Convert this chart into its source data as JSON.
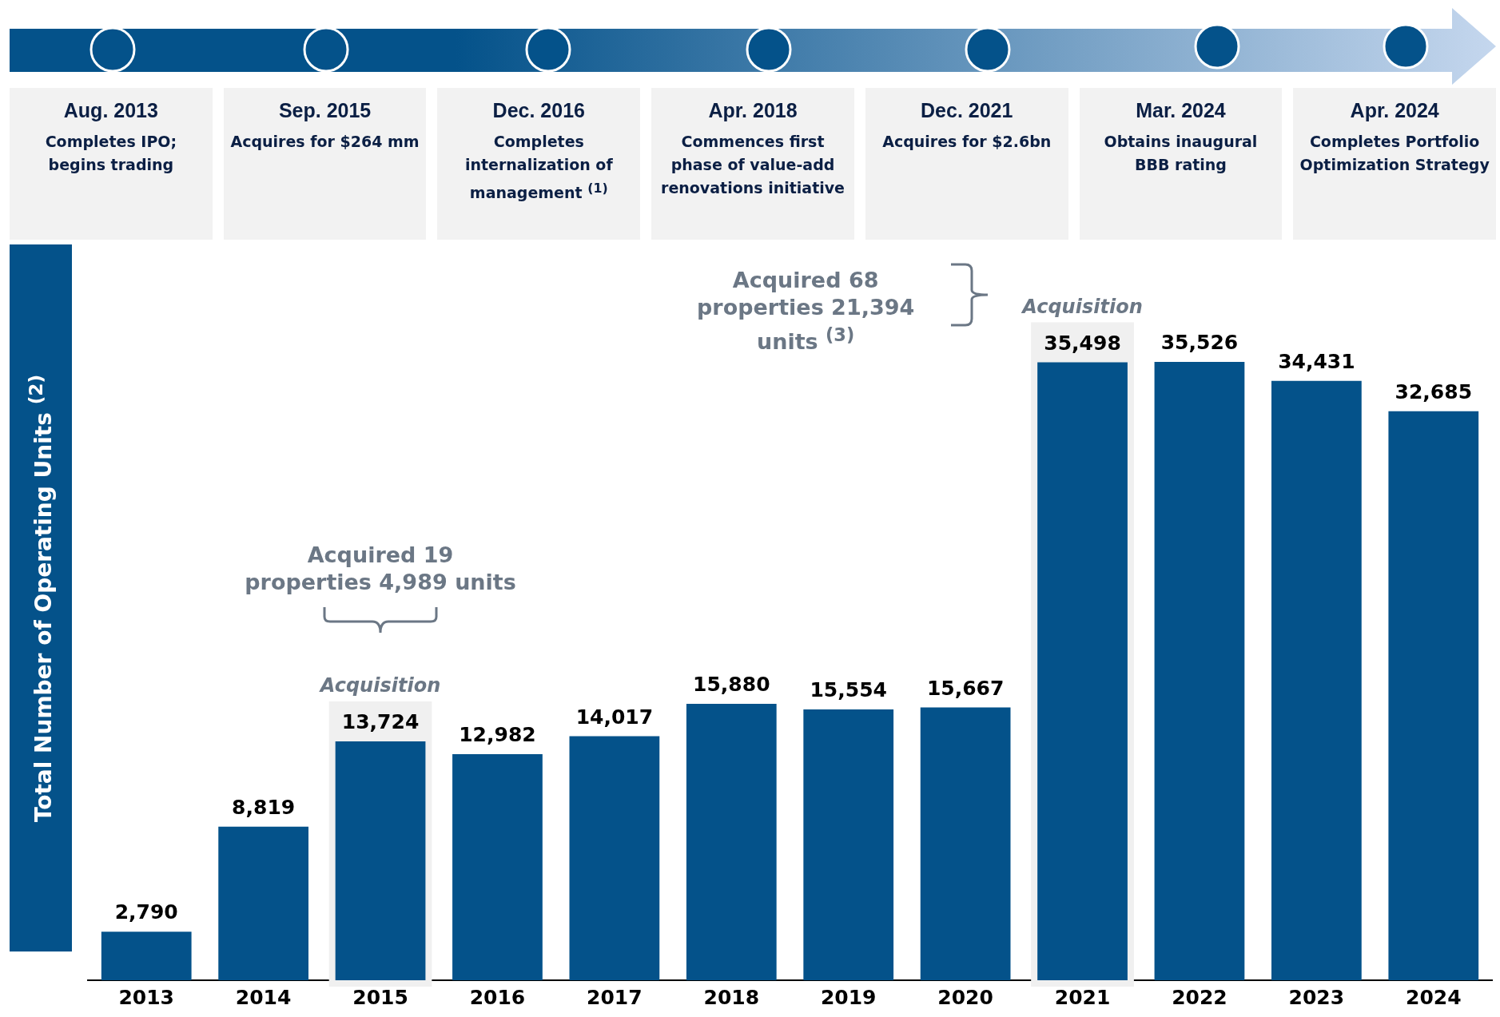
{
  "chart_data": {
    "type": "bar",
    "ylabel": "Total Number of Operating Units $^{(2)}$",
    "categories": [
      "2013",
      "2014",
      "2015",
      "2016",
      "2017",
      "2018",
      "2019",
      "2020",
      "2021",
      "2022",
      "2023",
      "2024"
    ],
    "values": [
      2790,
      8819,
      13724,
      12982,
      14017,
      15880,
      15554,
      15667,
      35498,
      35526,
      34431,
      32685
    ],
    "color": "#04528a",
    "value_labels": [
      "2,790",
      "8,819",
      "13,724",
      "12,982",
      "14,017",
      "15,880",
      "15,554",
      "15,667",
      "35,498",
      "35,526",
      "34,431",
      "32,685"
    ],
    "legend": false,
    "grid": false,
    "tick_labels": "x",
    "bands": [
      {
        "axis": "x",
        "from": "2015",
        "to": "2015",
        "label": "Acquisition",
        "color": "#f0f0f0"
      },
      {
        "axis": "x",
        "from": "2021",
        "to": "2021",
        "label": "Acquisition",
        "color": "#f0f0f0"
      }
    ],
    "annotations": [
      "Aug. 2013\nCompletes IPO; begins trading",
      "Sep. 2015\nAcquires for $264 mm",
      "Dec. 2016\nCompletes internalization of management $^{(1)}$",
      "Apr. 2018\nCommences first phase of value-add renovations initiative",
      "Dec. 2021\nAcquires for $2.6bn",
      "Mar. 2024\nObtains inaugural BBB rating",
      "Apr. 2024\nCompletes Portfolio Optimization Strategy",
      "Acquired 19 properties 4,989 units",
      "Acquired 68 properties 21,394 units $^{(3)}$"
    ]
  }
}
